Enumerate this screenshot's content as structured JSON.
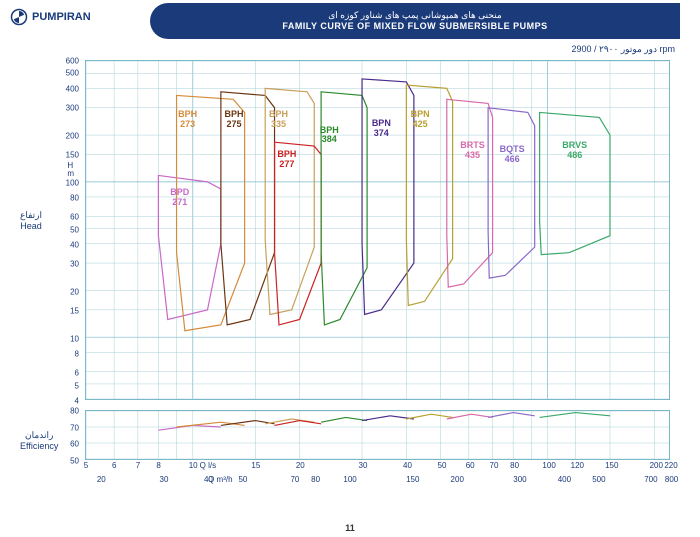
{
  "brand": "PUMPIRAN",
  "title_fa": "منحنی های همپوشانی پمپ های شناور کوزه ای",
  "title_en": "FAMILY CURVE OF MIXED FLOW SUBMERSIBLE PUMPS",
  "rpm_label": "دور موتور ۲۹۰۰ / 2900 rpm",
  "page_num": "11",
  "y_axis": {
    "label_fa": "ارتفاع",
    "label_en": "Head",
    "unit": "H m",
    "ticks": [
      4,
      5,
      6,
      8,
      10,
      15,
      20,
      30,
      40,
      50,
      60,
      80,
      100,
      150,
      200,
      300,
      400,
      500,
      600
    ],
    "type": "log",
    "min": 4,
    "max": 600
  },
  "eff_axis": {
    "label_fa": "راندمان",
    "label_en": "Efficiency",
    "ticks": [
      50,
      60,
      70,
      80
    ]
  },
  "x_axis": {
    "type": "log",
    "min": 5,
    "max": 220,
    "ticks_ls": [
      5,
      6,
      7,
      8,
      10,
      15,
      20,
      30,
      40,
      50,
      60,
      70,
      80,
      100,
      120,
      150,
      200,
      220
    ],
    "label_ls": "Q l/s",
    "ticks_m3h": [
      20,
      30,
      40,
      50,
      70,
      80,
      100,
      150,
      200,
      300,
      400,
      500,
      700,
      800
    ],
    "label_m3h": "Q m³/h"
  },
  "series": [
    {
      "name": "BPD",
      "num": "271",
      "color": "#c968c9",
      "label_x": 9.5,
      "label_y": 80,
      "poly": [
        [
          8,
          110
        ],
        [
          11,
          100
        ],
        [
          12,
          90
        ],
        [
          12,
          40
        ],
        [
          11,
          15
        ],
        [
          8.5,
          13
        ],
        [
          8,
          45
        ],
        [
          8,
          110
        ]
      ]
    },
    {
      "name": "BPH",
      "num": "273",
      "color": "#d68b3a",
      "label_x": 10,
      "label_y": 250,
      "poly": [
        [
          9,
          360
        ],
        [
          13,
          340
        ],
        [
          14,
          280
        ],
        [
          14,
          30
        ],
        [
          12,
          12
        ],
        [
          9.5,
          11
        ],
        [
          9,
          35
        ],
        [
          9,
          360
        ]
      ]
    },
    {
      "name": "BPH",
      "num": "275",
      "color": "#6b3410",
      "label_x": 13.5,
      "label_y": 250,
      "poly": [
        [
          12,
          380
        ],
        [
          16,
          360
        ],
        [
          17,
          300
        ],
        [
          17,
          35
        ],
        [
          14.5,
          13
        ],
        [
          12.5,
          12
        ],
        [
          12,
          40
        ],
        [
          12,
          380
        ]
      ]
    },
    {
      "name": "BPH",
      "num": "335",
      "color": "#c9a05a",
      "label_x": 18,
      "label_y": 250,
      "poly": [
        [
          16,
          400
        ],
        [
          21,
          380
        ],
        [
          22,
          320
        ],
        [
          22,
          38
        ],
        [
          19,
          15
        ],
        [
          16.5,
          14
        ],
        [
          16,
          42
        ],
        [
          16,
          400
        ]
      ]
    },
    {
      "name": "BPH",
      "num": "277",
      "color": "#cc2222",
      "label_x": 19,
      "label_y": 140,
      "poly": [
        [
          17,
          180
        ],
        [
          22,
          170
        ],
        [
          23,
          150
        ],
        [
          23,
          30
        ],
        [
          20,
          13
        ],
        [
          17.5,
          12
        ],
        [
          17,
          35
        ],
        [
          17,
          180
        ]
      ]
    },
    {
      "name": "BPH",
      "num": "384",
      "color": "#2a8a2a",
      "label_x": 25,
      "label_y": 200,
      "poly": [
        [
          23,
          380
        ],
        [
          30,
          360
        ],
        [
          31,
          300
        ],
        [
          31,
          28
        ],
        [
          26,
          13
        ],
        [
          23.5,
          12
        ],
        [
          23,
          35
        ],
        [
          23,
          380
        ]
      ]
    },
    {
      "name": "BPN",
      "num": "374",
      "color": "#4a2a8a",
      "label_x": 35,
      "label_y": 220,
      "poly": [
        [
          30,
          460
        ],
        [
          40,
          440
        ],
        [
          42,
          360
        ],
        [
          42,
          30
        ],
        [
          34,
          15
        ],
        [
          30.5,
          14
        ],
        [
          30,
          40
        ],
        [
          30,
          460
        ]
      ]
    },
    {
      "name": "BPN",
      "num": "425",
      "color": "#b8a030",
      "label_x": 45,
      "label_y": 250,
      "poly": [
        [
          40,
          420
        ],
        [
          52,
          400
        ],
        [
          54,
          330
        ],
        [
          54,
          32
        ],
        [
          45,
          17
        ],
        [
          40.5,
          16
        ],
        [
          40,
          42
        ],
        [
          40,
          420
        ]
      ]
    },
    {
      "name": "BRTS",
      "num": "435",
      "color": "#d868a8",
      "label_x": 62,
      "label_y": 160,
      "poly": [
        [
          52,
          340
        ],
        [
          68,
          320
        ],
        [
          70,
          260
        ],
        [
          70,
          35
        ],
        [
          58,
          22
        ],
        [
          52.5,
          21
        ],
        [
          52,
          45
        ],
        [
          52,
          340
        ]
      ]
    },
    {
      "name": "BQTS",
      "num": "466",
      "color": "#8a68c9",
      "label_x": 80,
      "label_y": 150,
      "poly": [
        [
          68,
          300
        ],
        [
          88,
          280
        ],
        [
          92,
          230
        ],
        [
          92,
          38
        ],
        [
          76,
          25
        ],
        [
          68.5,
          24
        ],
        [
          68,
          48
        ],
        [
          68,
          300
        ]
      ]
    },
    {
      "name": "BRVS",
      "num": "486",
      "color": "#3aa868",
      "label_x": 120,
      "label_y": 160,
      "poly": [
        [
          95,
          280
        ],
        [
          140,
          260
        ],
        [
          150,
          200
        ],
        [
          150,
          45
        ],
        [
          115,
          35
        ],
        [
          96,
          34
        ],
        [
          95,
          55
        ],
        [
          95,
          280
        ]
      ]
    }
  ],
  "eff_curves": [
    {
      "color": "#c968c9",
      "pts": [
        [
          8,
          68
        ],
        [
          10,
          71
        ],
        [
          12,
          70
        ]
      ]
    },
    {
      "color": "#d68b3a",
      "pts": [
        [
          9,
          70
        ],
        [
          12,
          73
        ],
        [
          14,
          71
        ]
      ]
    },
    {
      "color": "#6b3410",
      "pts": [
        [
          12,
          71
        ],
        [
          15,
          74
        ],
        [
          17,
          72
        ]
      ]
    },
    {
      "color": "#c9a05a",
      "pts": [
        [
          16,
          72
        ],
        [
          19,
          75
        ],
        [
          22,
          73
        ]
      ]
    },
    {
      "color": "#cc2222",
      "pts": [
        [
          17,
          71
        ],
        [
          20,
          74
        ],
        [
          23,
          72
        ]
      ]
    },
    {
      "color": "#2a8a2a",
      "pts": [
        [
          23,
          73
        ],
        [
          27,
          76
        ],
        [
          31,
          74
        ]
      ]
    },
    {
      "color": "#4a2a8a",
      "pts": [
        [
          30,
          74
        ],
        [
          36,
          77
        ],
        [
          42,
          75
        ]
      ]
    },
    {
      "color": "#b8a030",
      "pts": [
        [
          40,
          75
        ],
        [
          47,
          78
        ],
        [
          54,
          76
        ]
      ]
    },
    {
      "color": "#d868a8",
      "pts": [
        [
          52,
          75
        ],
        [
          61,
          78
        ],
        [
          70,
          76
        ]
      ]
    },
    {
      "color": "#8a68c9",
      "pts": [
        [
          68,
          76
        ],
        [
          80,
          79
        ],
        [
          92,
          77
        ]
      ]
    },
    {
      "color": "#3aa868",
      "pts": [
        [
          95,
          76
        ],
        [
          120,
          79
        ],
        [
          150,
          77
        ]
      ]
    }
  ],
  "colors": {
    "grid": "#a8d0d8",
    "grid_major": "#78b8c8",
    "text": "#1a3a7a",
    "banner": "#1a3a7a"
  }
}
